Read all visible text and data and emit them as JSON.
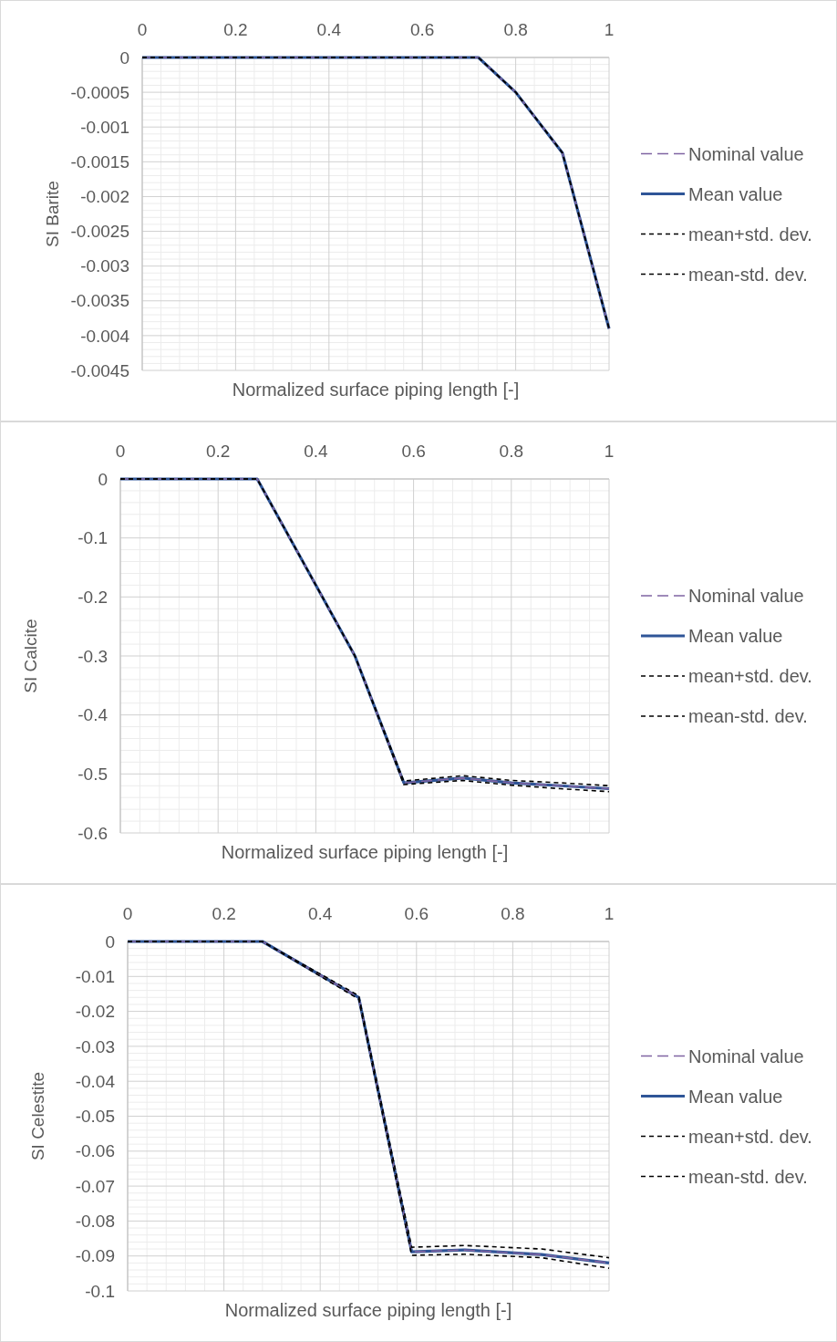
{
  "chart_data": [
    {
      "type": "line",
      "xlabel": "Normalized surface piping length [-]",
      "ylabel": "SI Barite",
      "xlim": [
        0,
        1
      ],
      "xticks": [
        0,
        0.2,
        0.4,
        0.6,
        0.8,
        1
      ],
      "ylim": [
        -0.0045,
        0
      ],
      "yticks": [
        -0.0045,
        -0.004,
        -0.0035,
        -0.003,
        -0.0025,
        -0.002,
        -0.0015,
        -0.001,
        -0.0005,
        0
      ],
      "grid": true,
      "legend": "right",
      "series": [
        {
          "name": "Nominal value",
          "color": "#8064a2",
          "line_style": "dashed",
          "x": [
            0,
            0.72,
            0.8,
            0.9,
            1
          ],
          "values": [
            0,
            0,
            -0.0005,
            -0.00137,
            -0.0039
          ]
        },
        {
          "name": "Mean value",
          "color": "#2f5597",
          "line_style": "solid",
          "x": [
            0,
            0.72,
            0.8,
            0.9,
            1
          ],
          "values": [
            0,
            0,
            -0.0005,
            -0.00137,
            -0.0039
          ]
        },
        {
          "name": "mean+std. dev.",
          "color": "#000000",
          "line_style": "dashed",
          "x": [
            0,
            0.72,
            0.8,
            0.9,
            1
          ],
          "values": [
            0,
            0,
            -0.0005,
            -0.00137,
            -0.0039
          ]
        },
        {
          "name": "mean-std. dev.",
          "color": "#000000",
          "line_style": "dashed",
          "x": [
            0,
            0.72,
            0.8,
            0.9,
            1
          ],
          "values": [
            0,
            0,
            -0.0005,
            -0.00137,
            -0.0039
          ]
        }
      ]
    },
    {
      "type": "line",
      "xlabel": "Normalized surface piping length [-]",
      "ylabel": "SI Calcite",
      "xlim": [
        0,
        1
      ],
      "xticks": [
        0,
        0.2,
        0.4,
        0.6,
        0.8,
        1
      ],
      "ylim": [
        -0.6,
        0
      ],
      "yticks": [
        -0.6,
        -0.5,
        -0.4,
        -0.3,
        -0.2,
        -0.1,
        0
      ],
      "grid": true,
      "legend": "right",
      "series": [
        {
          "name": "Nominal value",
          "color": "#8064a2",
          "line_style": "dashed",
          "x": [
            0,
            0.28,
            0.48,
            0.58,
            0.7,
            0.8,
            0.9,
            1
          ],
          "values": [
            0,
            0,
            -0.3,
            -0.515,
            -0.507,
            -0.515,
            -0.52,
            -0.525
          ]
        },
        {
          "name": "Mean value",
          "color": "#2f5597",
          "line_style": "solid",
          "x": [
            0,
            0.28,
            0.48,
            0.58,
            0.7,
            0.8,
            0.9,
            1
          ],
          "values": [
            0,
            0,
            -0.3,
            -0.515,
            -0.507,
            -0.515,
            -0.52,
            -0.525
          ]
        },
        {
          "name": "mean+std. dev.",
          "color": "#000000",
          "line_style": "dashed",
          "x": [
            0,
            0.28,
            0.48,
            0.58,
            0.7,
            0.8,
            0.9,
            1
          ],
          "values": [
            0,
            0,
            -0.3,
            -0.512,
            -0.503,
            -0.511,
            -0.515,
            -0.52
          ]
        },
        {
          "name": "mean-std. dev.",
          "color": "#000000",
          "line_style": "dashed",
          "x": [
            0,
            0.28,
            0.48,
            0.58,
            0.7,
            0.8,
            0.9,
            1
          ],
          "values": [
            0,
            0,
            -0.3,
            -0.518,
            -0.511,
            -0.519,
            -0.525,
            -0.53
          ]
        }
      ]
    },
    {
      "type": "line",
      "xlabel": "Normalized surface piping length [-]",
      "ylabel": "SI Celestite",
      "xlim": [
        0,
        1
      ],
      "xticks": [
        0,
        0.2,
        0.4,
        0.6,
        0.8,
        1
      ],
      "ylim": [
        -0.1,
        0
      ],
      "yticks": [
        -0.1,
        -0.09,
        -0.08,
        -0.07,
        -0.06,
        -0.05,
        -0.04,
        -0.03,
        -0.02,
        -0.01,
        0
      ],
      "grid": true,
      "legend": "right",
      "series": [
        {
          "name": "Nominal value",
          "color": "#8064a2",
          "line_style": "dashed",
          "x": [
            0,
            0.28,
            0.48,
            0.59,
            0.7,
            0.86,
            1
          ],
          "values": [
            0,
            0,
            -0.016,
            -0.0888,
            -0.0883,
            -0.0896,
            -0.092
          ]
        },
        {
          "name": "Mean value",
          "color": "#2f5597",
          "line_style": "solid",
          "x": [
            0,
            0.28,
            0.48,
            0.59,
            0.7,
            0.86,
            1
          ],
          "values": [
            0,
            0,
            -0.016,
            -0.0888,
            -0.0883,
            -0.0896,
            -0.092
          ]
        },
        {
          "name": "mean+std. dev.",
          "color": "#000000",
          "line_style": "dashed",
          "x": [
            0,
            0.28,
            0.48,
            0.59,
            0.7,
            0.86,
            1
          ],
          "values": [
            0,
            0,
            -0.0155,
            -0.0875,
            -0.087,
            -0.088,
            -0.0905
          ]
        },
        {
          "name": "mean-std. dev.",
          "color": "#000000",
          "line_style": "dashed",
          "x": [
            0,
            0.28,
            0.48,
            0.59,
            0.7,
            0.86,
            1
          ],
          "values": [
            0,
            0,
            -0.0165,
            -0.0898,
            -0.0895,
            -0.0905,
            -0.0935
          ]
        }
      ]
    }
  ]
}
